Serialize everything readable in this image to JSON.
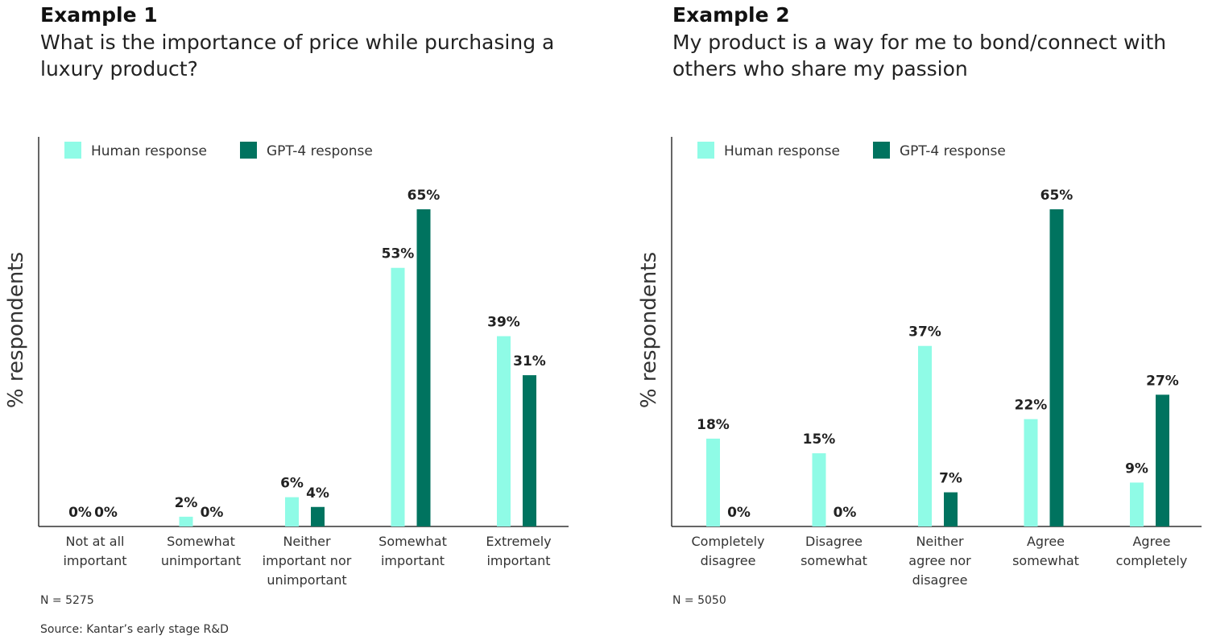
{
  "colors": {
    "human": "#8ffbe6",
    "gpt": "#00735f",
    "axis": "#333333"
  },
  "footer": {
    "source": "Source: Kantar’s early stage R&D"
  },
  "chart_data": [
    {
      "type": "bar",
      "title": "Example 1",
      "subtitle": "What is the importance of price while purchasing a luxury product?",
      "ylabel": "% respondents",
      "xlabel": "",
      "ylim": [
        0,
        80
      ],
      "grid": false,
      "legend": "top-left",
      "note": "N = 5275",
      "categories": [
        "Not at all\nimportant",
        "Somewhat\nunimportant",
        "Neither\nimportant nor\nunimportant",
        "Somewhat\nimportant",
        "Extremely\nimportant"
      ],
      "series": [
        {
          "name": "Human response",
          "values": [
            0,
            2,
            6,
            53,
            39
          ],
          "labels": [
            "0%",
            "2%",
            "6%",
            "53%",
            "39%"
          ]
        },
        {
          "name": "GPT-4 response",
          "values": [
            0,
            0,
            4,
            65,
            31
          ],
          "labels": [
            "0%",
            "0%",
            "4%",
            "65%",
            "31%"
          ]
        }
      ]
    },
    {
      "type": "bar",
      "title": "Example 2",
      "subtitle": "My product is a way for me to bond/connect with others who share my passion",
      "ylabel": "% respondents",
      "xlabel": "",
      "ylim": [
        0,
        80
      ],
      "grid": false,
      "legend": "top-left",
      "note": "N = 5050",
      "categories": [
        "Completely\ndisagree",
        "Disagree\nsomewhat",
        "Neither\nagree nor\ndisagree",
        "Agree\nsomewhat",
        "Agree\ncompletely"
      ],
      "series": [
        {
          "name": "Human response",
          "values": [
            18,
            15,
            37,
            22,
            9
          ],
          "labels": [
            "18%",
            "15%",
            "37%",
            "22%",
            "9%"
          ]
        },
        {
          "name": "GPT-4 response",
          "values": [
            0,
            0,
            7,
            65,
            27
          ],
          "labels": [
            "0%",
            "0%",
            "7%",
            "65%",
            "27%"
          ]
        }
      ]
    }
  ]
}
